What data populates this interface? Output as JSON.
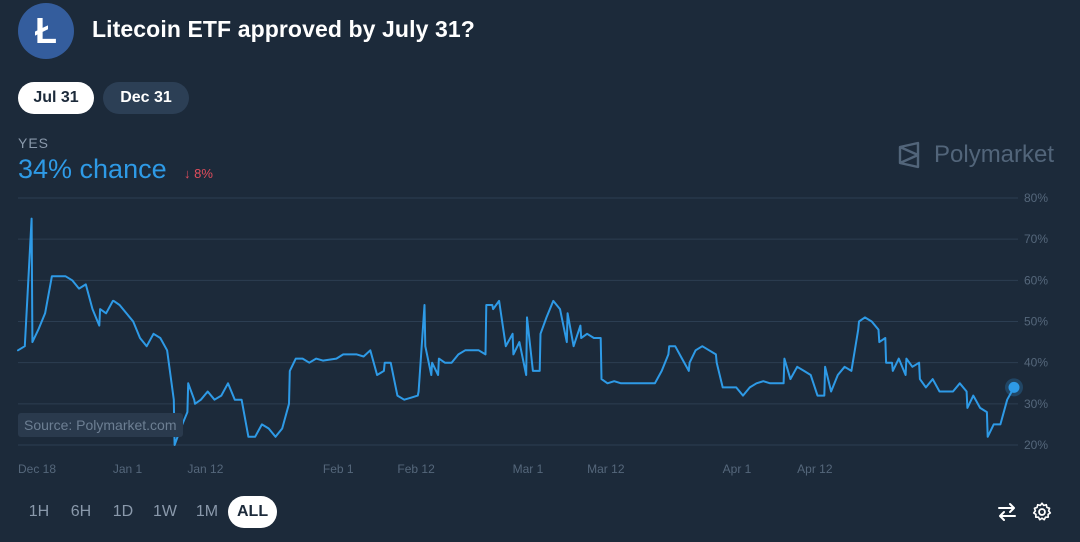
{
  "market": {
    "title": "Litecoin ETF approved by July 31?",
    "logo_icon": "litecoin-icon"
  },
  "tabs": [
    {
      "label": "Jul 31",
      "active": true
    },
    {
      "label": "Dec 31",
      "active": false
    }
  ],
  "outcome": {
    "label": "YES",
    "chance_text": "34% chance",
    "delta_arrow": "↓",
    "delta_value": "8%"
  },
  "brand": {
    "watermark": "Polymarket",
    "source": "Source: Polymarket.com"
  },
  "chart_data": {
    "type": "line",
    "ylim": [
      20,
      80
    ],
    "y_ticks": [
      20,
      30,
      40,
      50,
      60,
      70,
      80
    ],
    "y_tick_labels": [
      "20%",
      "30%",
      "40%",
      "50%",
      "60%",
      "70%",
      "80%"
    ],
    "x_tick_labels": [
      "Dec 18",
      "Jan 1",
      "Jan 12",
      "Feb 1",
      "Feb 12",
      "Mar 1",
      "Mar 12",
      "Apr 1",
      "Apr 12"
    ],
    "x_tick_dates": [
      "2024-12-18",
      "2025-01-01",
      "2025-01-12",
      "2025-02-01",
      "2025-02-12",
      "2025-03-01",
      "2025-03-12",
      "2025-04-01",
      "2025-04-12"
    ],
    "series": [
      {
        "color": "#2e9ae6",
        "points": [
          [
            "2024-12-18",
            43
          ],
          [
            "2024-12-19",
            44
          ],
          [
            "2024-12-20",
            75
          ],
          [
            "2024-12-20",
            45
          ],
          [
            "2024-12-21",
            48
          ],
          [
            "2024-12-22",
            52
          ],
          [
            "2024-12-23",
            61
          ],
          [
            "2024-12-24",
            61
          ],
          [
            "2024-12-25",
            61
          ],
          [
            "2024-12-26",
            60
          ],
          [
            "2024-12-27",
            58
          ],
          [
            "2024-12-28",
            59
          ],
          [
            "2024-12-29",
            53
          ],
          [
            "2024-12-30",
            49
          ],
          [
            "2024-12-30",
            53
          ],
          [
            "2024-12-31",
            52
          ],
          [
            "2025-01-01",
            55
          ],
          [
            "2025-01-01",
            55
          ],
          [
            "2025-01-02",
            54
          ],
          [
            "2025-01-03",
            52
          ],
          [
            "2025-01-04",
            50
          ],
          [
            "2025-01-05",
            46
          ],
          [
            "2025-01-06",
            44
          ],
          [
            "2025-01-07",
            47
          ],
          [
            "2025-01-08",
            46
          ],
          [
            "2025-01-09",
            43
          ],
          [
            "2025-01-10",
            31
          ],
          [
            "2025-01-10",
            20
          ],
          [
            "2025-01-11",
            24
          ],
          [
            "2025-01-12",
            28
          ],
          [
            "2025-01-12",
            35
          ],
          [
            "2025-01-13",
            31
          ],
          [
            "2025-01-13",
            30
          ],
          [
            "2025-01-14",
            31
          ],
          [
            "2025-01-15",
            33
          ],
          [
            "2025-01-16",
            31
          ],
          [
            "2025-01-17",
            32
          ],
          [
            "2025-01-18",
            35
          ],
          [
            "2025-01-19",
            31
          ],
          [
            "2025-01-20",
            31
          ],
          [
            "2025-01-21",
            22
          ],
          [
            "2025-01-22",
            22
          ],
          [
            "2025-01-23",
            25
          ],
          [
            "2025-01-24",
            24
          ],
          [
            "2025-01-25",
            22
          ],
          [
            "2025-01-26",
            24
          ],
          [
            "2025-01-27",
            30
          ],
          [
            "2025-01-27",
            38
          ],
          [
            "2025-01-28",
            41
          ],
          [
            "2025-01-29",
            41
          ],
          [
            "2025-01-30",
            40
          ],
          [
            "2025-01-31",
            41
          ],
          [
            "2025-02-01",
            40.5
          ],
          [
            "2025-02-03",
            41
          ],
          [
            "2025-02-04",
            42
          ],
          [
            "2025-02-05",
            42
          ],
          [
            "2025-02-06",
            42
          ],
          [
            "2025-02-07",
            41.5
          ],
          [
            "2025-02-08",
            43
          ],
          [
            "2025-02-09",
            37
          ],
          [
            "2025-02-10",
            38
          ],
          [
            "2025-02-10",
            40
          ],
          [
            "2025-02-11",
            40
          ],
          [
            "2025-02-12",
            32
          ],
          [
            "2025-02-13",
            31
          ],
          [
            "2025-02-14",
            31.5
          ],
          [
            "2025-02-15",
            32
          ],
          [
            "2025-02-15",
            33
          ],
          [
            "2025-02-16",
            54
          ],
          [
            "2025-02-16",
            44
          ],
          [
            "2025-02-17",
            37
          ],
          [
            "2025-02-17",
            40
          ],
          [
            "2025-02-18",
            37
          ],
          [
            "2025-02-18",
            41
          ],
          [
            "2025-02-19",
            40
          ],
          [
            "2025-02-20",
            40
          ],
          [
            "2025-02-21",
            42
          ],
          [
            "2025-02-22",
            43
          ],
          [
            "2025-02-23",
            43
          ],
          [
            "2025-02-24",
            43
          ],
          [
            "2025-02-25",
            42
          ],
          [
            "2025-02-25",
            54
          ],
          [
            "2025-02-26",
            54
          ],
          [
            "2025-02-26",
            53
          ],
          [
            "2025-02-27",
            55
          ],
          [
            "2025-02-28",
            44
          ],
          [
            "2025-03-01",
            47
          ],
          [
            "2025-03-01",
            42
          ],
          [
            "2025-03-02",
            45
          ],
          [
            "2025-03-03",
            37
          ],
          [
            "2025-03-03",
            51
          ],
          [
            "2025-03-04",
            38
          ],
          [
            "2025-03-05",
            38
          ],
          [
            "2025-03-05",
            47
          ],
          [
            "2025-03-06",
            51
          ],
          [
            "2025-03-07",
            55
          ],
          [
            "2025-03-08",
            53
          ],
          [
            "2025-03-09",
            45
          ],
          [
            "2025-03-09",
            52
          ],
          [
            "2025-03-10",
            44
          ],
          [
            "2025-03-11",
            49
          ],
          [
            "2025-03-11",
            46
          ],
          [
            "2025-03-12",
            47
          ],
          [
            "2025-03-13",
            46
          ],
          [
            "2025-03-14",
            46
          ],
          [
            "2025-03-14",
            36
          ],
          [
            "2025-03-15",
            35
          ],
          [
            "2025-03-16",
            35.5
          ],
          [
            "2025-03-17",
            35
          ],
          [
            "2025-03-18",
            35
          ],
          [
            "2025-03-19",
            35
          ],
          [
            "2025-03-20",
            35
          ],
          [
            "2025-03-21",
            35
          ],
          [
            "2025-03-22",
            35
          ],
          [
            "2025-03-23",
            38
          ],
          [
            "2025-03-24",
            42
          ],
          [
            "2025-03-24",
            44
          ],
          [
            "2025-03-25",
            44
          ],
          [
            "2025-03-26",
            41
          ],
          [
            "2025-03-27",
            38
          ],
          [
            "2025-03-27",
            40
          ],
          [
            "2025-03-28",
            43
          ],
          [
            "2025-03-29",
            44
          ],
          [
            "2025-03-30",
            43
          ],
          [
            "2025-03-31",
            42
          ],
          [
            "2025-03-31",
            40
          ],
          [
            "2025-04-01",
            34
          ],
          [
            "2025-04-02",
            34
          ],
          [
            "2025-04-03",
            34
          ],
          [
            "2025-04-04",
            32
          ],
          [
            "2025-04-05",
            34
          ],
          [
            "2025-04-06",
            35
          ],
          [
            "2025-04-07",
            35.5
          ],
          [
            "2025-04-08",
            35
          ],
          [
            "2025-04-09",
            35
          ],
          [
            "2025-04-10",
            35
          ],
          [
            "2025-04-10",
            41
          ],
          [
            "2025-04-11",
            36
          ],
          [
            "2025-04-12",
            39
          ],
          [
            "2025-04-13",
            38
          ],
          [
            "2025-04-14",
            37
          ],
          [
            "2025-04-15",
            32
          ],
          [
            "2025-04-16",
            32
          ],
          [
            "2025-04-16",
            39
          ],
          [
            "2025-04-17",
            33
          ],
          [
            "2025-04-18",
            37
          ],
          [
            "2025-04-19",
            39
          ],
          [
            "2025-04-20",
            38
          ],
          [
            "2025-04-21",
            48
          ],
          [
            "2025-04-21",
            50
          ],
          [
            "2025-04-22",
            51
          ],
          [
            "2025-04-23",
            50
          ],
          [
            "2025-04-24",
            48
          ],
          [
            "2025-04-24",
            45
          ],
          [
            "2025-04-25",
            46
          ],
          [
            "2025-04-25",
            40
          ],
          [
            "2025-04-26",
            40
          ],
          [
            "2025-04-26",
            38
          ],
          [
            "2025-04-27",
            41
          ],
          [
            "2025-04-28",
            37
          ],
          [
            "2025-04-28",
            41
          ],
          [
            "2025-04-29",
            39
          ],
          [
            "2025-04-30",
            40
          ],
          [
            "2025-04-30",
            36
          ],
          [
            "2025-05-01",
            34
          ],
          [
            "2025-05-02",
            36
          ],
          [
            "2025-05-03",
            33
          ],
          [
            "2025-05-04",
            33
          ],
          [
            "2025-05-05",
            33
          ],
          [
            "2025-05-06",
            35
          ],
          [
            "2025-05-07",
            33
          ],
          [
            "2025-05-07",
            29
          ],
          [
            "2025-05-08",
            32
          ],
          [
            "2025-05-09",
            29
          ],
          [
            "2025-05-10",
            28
          ],
          [
            "2025-05-10",
            22
          ],
          [
            "2025-05-11",
            25
          ],
          [
            "2025-05-12",
            25
          ],
          [
            "2025-05-13",
            31
          ],
          [
            "2025-05-14",
            34
          ]
        ]
      }
    ],
    "grid": true,
    "legend": "none"
  },
  "time_ranges": [
    {
      "label": "1H",
      "active": false
    },
    {
      "label": "6H",
      "active": false
    },
    {
      "label": "1D",
      "active": false
    },
    {
      "label": "1W",
      "active": false
    },
    {
      "label": "1M",
      "active": false
    },
    {
      "label": "ALL",
      "active": true
    }
  ],
  "toolbar": {
    "swap_icon": "swap-arrows-icon",
    "settings_icon": "gear-icon"
  }
}
